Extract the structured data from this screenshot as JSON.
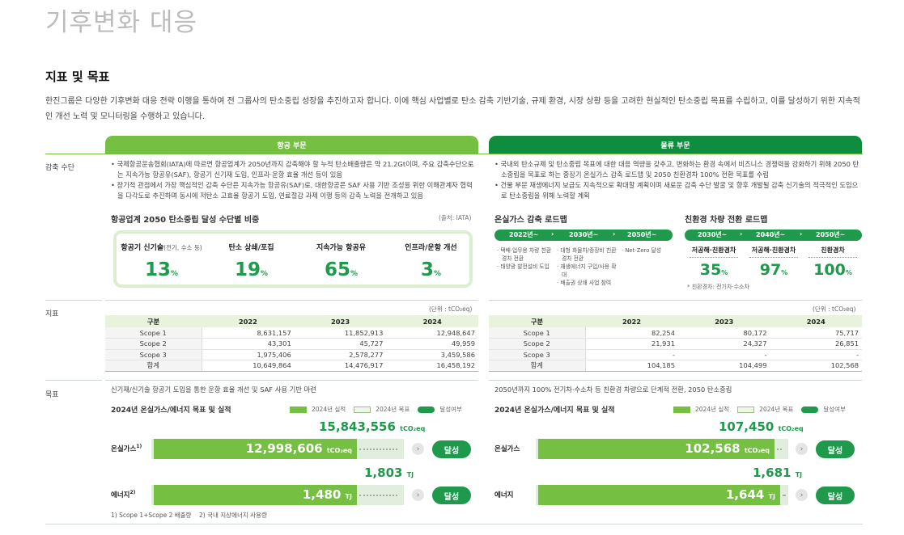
{
  "page_title": "기후변화 대응",
  "section_title": "지표 및 목표",
  "intro": "한진그룹은 다양한 기후변화 대응 전략 이행을 통하여 전 그룹사의 탄소중립 성장을 추진하고자 합니다. 이에 핵심 사업별로 탄소 감축 기반기술, 규제 환경, 시장 상황 등을 고려한 현실적인 탄소중립 목표를 수립하고, 이를 달성하기 위한 지속적인 개선 노력 및 모니터링을 수행하고 있습니다.",
  "row_labels": {
    "means": "감축 수단",
    "metrics": "지표",
    "targets": "목표"
  },
  "aviation": {
    "header": "항공 부문",
    "bullets": [
      "국제항공운송협회(IATA)에 따르면 항공업계가 2050년까지 감축해야 할 누적 탄소배출량은 약 21.2Gt이며, 주요 감축수단으로는 지속가능 항공유(SAF), 항공기 신기재 도입, 인프라·운항 효율 개선 등이 있음",
      "장기적 관점에서 가장 핵심적인 감축 수단은 지속가능 항공유(SAF)로, 대한항공은 SAF 사용 기반 조성을 위한 이해관계자 협력을 다각도로 추진하며 동시에 저탄소 고효율 항공기 도입, 연료절감 과제 이행 등의 감축 노력을 전개하고 있음"
    ],
    "share_title": "항공업계 2050 탄소중립 달성 수단별 비중",
    "source": "(출처: IATA)",
    "shares": [
      {
        "label": "항공기 신기술",
        "note": "(전기, 수소 등)",
        "value": "13",
        "unit": "%"
      },
      {
        "label": "탄소 상쇄/포집",
        "note": "",
        "value": "19",
        "unit": "%"
      },
      {
        "label": "지속가능 항공유",
        "note": "",
        "value": "65",
        "unit": "%"
      },
      {
        "label": "인프라/운항 개선",
        "note": "",
        "value": "3",
        "unit": "%"
      }
    ],
    "unit": "(단위 : tCO₂eq)",
    "table": {
      "headers": [
        "구분",
        "2022",
        "2023",
        "2024"
      ],
      "rows": [
        [
          "Scope 1",
          "8,631,157",
          "11,852,913",
          "12,948,647"
        ],
        [
          "Scope 2",
          "43,301",
          "45,727",
          "49,959"
        ],
        [
          "Scope 3",
          "1,975,406",
          "2,578,277",
          "3,459,586"
        ],
        [
          "합계",
          "10,649,864",
          "14,476,917",
          "16,458,192"
        ]
      ]
    },
    "target_text": "신기재/신기술 항공기 도입을 통한 운항 효율 개선 및 SAF 사용 기반 마련",
    "chart_title": "2024년 온실가스/에너지 목표 및 실적",
    "legend": [
      "2024년 실적",
      "2024년 목표",
      "달성여부"
    ],
    "ghg": {
      "label": "온실가스",
      "sup": "1)",
      "target": "15,843,556",
      "target_unit": "tCO₂eq",
      "actual": "12,998,606",
      "actual_unit": "tCO₂eq",
      "status": "달성"
    },
    "energy": {
      "label": "에너지",
      "sup": "2)",
      "target": "1,803",
      "target_unit": "TJ",
      "actual": "1,480",
      "actual_unit": "TJ",
      "status": "달성"
    },
    "footnotes": [
      "1) Scope 1+Scope 2 배출량",
      "2) 국내 지상에너지 사용량"
    ]
  },
  "logistics": {
    "header": "물류 부문",
    "bullets": [
      "국내외 탄소규제 및 탄소중립 목표에 대한 대응 역량을 갖추고, 변화하는 환경 속에서 비즈니스 경쟁력을 강화하기 위해 2050 탄소중립을 목표로 하는 중장기 온실가스 감축 로드맵 및 2050 친환경차 100% 전환 목표를 수립",
      "건물 부문 재생에너지 보급도 지속적으로 확대할 계획이며 새로운 감축 수단 발굴 및 향후 개발될 감축 신기술의 적극적인 도입으로 탄소중립을 위해 노력할 계획"
    ],
    "roadmap_title": "온실가스 감축 로드맵",
    "roadmap_periods": [
      "2022년~",
      "2030년~",
      "2050년~"
    ],
    "roadmap_items": [
      [
        "택배·업무용 차량 친환경차 전환",
        "태양광 발전설비 도입"
      ],
      [
        "대형 화물차/중장비 친환경차 전환",
        "재생에너지 구입/사용 확대",
        "배출권 상쇄 사업 참여"
      ],
      [
        "Net-Zero 달성"
      ]
    ],
    "ev_title": "친환경 차량 전환 로드맵",
    "ev_periods": [
      "2030년~",
      "2040년~",
      "2050년~"
    ],
    "ev_cols": [
      {
        "label": "저공해·친환경차",
        "value": "35",
        "unit": "%"
      },
      {
        "label": "저공해·친환경차",
        "value": "97",
        "unit": "%"
      },
      {
        "label": "친환경차",
        "value": "100",
        "unit": "%"
      }
    ],
    "ev_note": "* 친환경차: 전기차·수소차",
    "unit": "(단위 : tCO₂eq)",
    "table": {
      "headers": [
        "구분",
        "2022",
        "2023",
        "2024"
      ],
      "rows": [
        [
          "Scope 1",
          "82,254",
          "80,172",
          "75,717"
        ],
        [
          "Scope 2",
          "21,931",
          "24,327",
          "26,851"
        ],
        [
          "Scope 3",
          "-",
          "-",
          "-"
        ],
        [
          "합계",
          "104,185",
          "104,499",
          "102,568"
        ]
      ]
    },
    "target_text": "2050년까지 100% 전기차·수소차 등 친환경 차량으로 단계적 전환, 2050 탄소중립",
    "chart_title": "2024년 온실가스/에너지 목표 및 실적",
    "legend": [
      "2024년 실적",
      "2024년 목표",
      "달성여부"
    ],
    "ghg": {
      "label": "온실가스",
      "target": "107,450",
      "target_unit": "tCO₂eq",
      "actual": "102,568",
      "actual_unit": "tCO₂eq",
      "status": "달성"
    },
    "energy": {
      "label": "에너지",
      "target": "1,681",
      "target_unit": "TJ",
      "actual": "1,644",
      "actual_unit": "TJ",
      "status": "달성"
    }
  },
  "colors": {
    "light_green": "#75c043",
    "dark_green": "#0e8d3e",
    "accent": "#1f9a4c"
  }
}
